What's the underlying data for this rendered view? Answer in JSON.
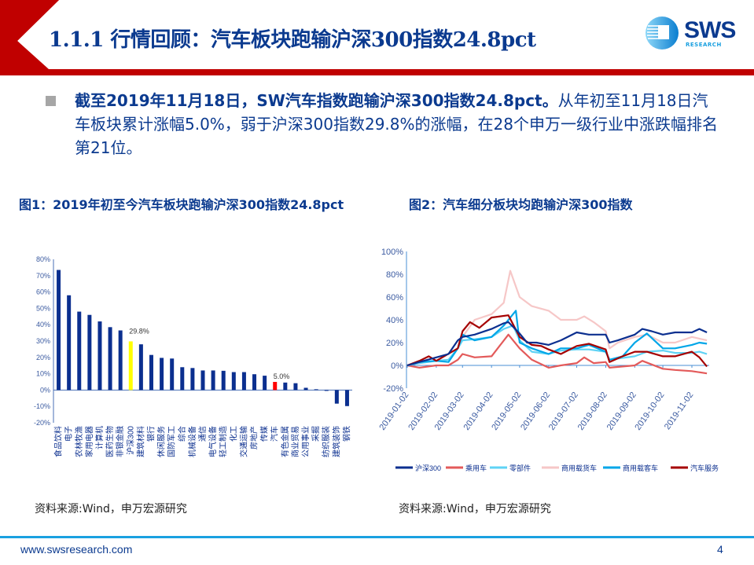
{
  "header": {
    "title": "1.1.1 行情回顾：汽车板块跑输沪深300指数24.8pct",
    "logo_text": "SWS",
    "logo_sub": "RESEARCH",
    "accent": "#c00000",
    "brand": "#0b3a8f"
  },
  "summary": {
    "bold": "截至2019年11月18日，SW汽车指数跑输沪深300指数24.8pct。",
    "rest": "从年初至11月18日汽车板块累计涨幅5.0%，弱于沪深300指数29.8%的涨幅，在28个申万一级行业中涨跌幅排名第21位。"
  },
  "figure1": {
    "title": "图1：2019年初至今汽车板块跑输沪深300指数24.8pct",
    "source": "资料来源:Wind，申万宏源研究"
  },
  "figure2": {
    "title": "图2：汽车细分板块均跑输沪深300指数",
    "source": "资料来源:Wind，申万宏源研究"
  },
  "chart_data": [
    {
      "type": "bar",
      "ylim": [
        -20,
        80
      ],
      "yticks": [
        "80%",
        "70%",
        "60%",
        "50%",
        "40%",
        "30%",
        "20%",
        "10%",
        "0%",
        "-10%",
        "-20%"
      ],
      "categories": [
        "食品饮料",
        "电子",
        "农林牧渔",
        "家用电器",
        "计算机",
        "医药生物",
        "非银金融",
        "沪深300",
        "建筑材料",
        "银行",
        "休闲服务",
        "国防军工",
        "综合",
        "机械设备",
        "通信",
        "电气设备",
        "轻工制造",
        "化工",
        "交通运输",
        "房地产",
        "传媒",
        "汽车",
        "有色金属",
        "商业贸易",
        "公用事业",
        "采掘",
        "纺织服装",
        "建筑装饰",
        "钢铁"
      ],
      "values": [
        73.5,
        58,
        48,
        46,
        42,
        38.5,
        36.5,
        29.8,
        28,
        21.5,
        19.7,
        19.3,
        14,
        13.5,
        12,
        12,
        11.8,
        11,
        11,
        9.7,
        8.8,
        5.0,
        4.6,
        4.2,
        1.4,
        0.5,
        -0.5,
        -8.3,
        -9.8
      ],
      "highlight": {
        "沪深300": "#ffff00",
        "汽车": "#ff0000"
      },
      "bar_color": "#0b2f8f",
      "data_labels": [
        {
          "category": "沪深300",
          "text": "29.8%"
        },
        {
          "category": "汽车",
          "text": "5.0%"
        }
      ]
    },
    {
      "type": "line",
      "ylim": [
        -20,
        100
      ],
      "yticks": [
        "100%",
        "80%",
        "60%",
        "40%",
        "20%",
        "0%",
        "-20%"
      ],
      "xticks": [
        "2019-01-02",
        "2019-02-02",
        "2019-03-02",
        "2019-04-02",
        "2019-05-02",
        "2019-06-02",
        "2019-07-02",
        "2019-08-02",
        "2019-09-02",
        "2019-10-02",
        "2019-11-02"
      ],
      "legend": "bottom",
      "series": [
        {
          "name": "沪深300",
          "color": "#0b2f8f",
          "x": [
            "2019-01-02",
            "2019-01-15",
            "2019-02-02",
            "2019-02-15",
            "2019-02-25",
            "2019-03-02",
            "2019-03-15",
            "2019-04-02",
            "2019-04-15",
            "2019-04-20",
            "2019-05-02",
            "2019-05-10",
            "2019-05-20",
            "2019-06-02",
            "2019-06-15",
            "2019-07-02",
            "2019-07-15",
            "2019-08-02",
            "2019-08-06",
            "2019-08-15",
            "2019-09-02",
            "2019-09-10",
            "2019-09-20",
            "2019-10-02",
            "2019-10-15",
            "2019-11-02",
            "2019-11-10",
            "2019-11-18"
          ],
          "y": [
            0,
            3,
            7,
            10,
            22,
            25,
            27,
            32,
            37,
            38,
            28,
            20,
            20,
            18,
            22,
            29,
            27,
            27,
            20,
            22,
            27,
            32,
            30,
            27,
            29,
            29,
            32,
            29
          ]
        },
        {
          "name": "乘用车",
          "color": "#e35a5a",
          "x": [
            "2019-01-02",
            "2019-01-15",
            "2019-02-02",
            "2019-02-15",
            "2019-02-25",
            "2019-03-02",
            "2019-03-15",
            "2019-04-02",
            "2019-04-20",
            "2019-05-02",
            "2019-05-15",
            "2019-06-02",
            "2019-06-15",
            "2019-07-02",
            "2019-07-10",
            "2019-07-20",
            "2019-08-02",
            "2019-08-06",
            "2019-09-02",
            "2019-09-10",
            "2019-10-02",
            "2019-10-15",
            "2019-11-02",
            "2019-11-18"
          ],
          "y": [
            0,
            -2,
            0,
            0,
            5,
            10,
            7,
            8,
            27,
            15,
            5,
            -2,
            0,
            2,
            7,
            2,
            3,
            -2,
            0,
            4,
            -3,
            -4,
            -5,
            -7
          ]
        },
        {
          "name": "零部件",
          "color": "#5fd3f5",
          "x": [
            "2019-01-02",
            "2019-01-15",
            "2019-02-02",
            "2019-02-15",
            "2019-02-25",
            "2019-03-02",
            "2019-03-15",
            "2019-04-02",
            "2019-04-15",
            "2019-04-25",
            "2019-05-02",
            "2019-05-15",
            "2019-06-02",
            "2019-06-15",
            "2019-07-02",
            "2019-07-15",
            "2019-08-02",
            "2019-08-06",
            "2019-08-15",
            "2019-09-02",
            "2019-09-15",
            "2019-10-02",
            "2019-10-15",
            "2019-11-02",
            "2019-11-10",
            "2019-11-18"
          ],
          "y": [
            0,
            2,
            4,
            5,
            15,
            22,
            23,
            25,
            32,
            35,
            22,
            12,
            10,
            13,
            14,
            14,
            12,
            5,
            6,
            8,
            12,
            13,
            11,
            11,
            12,
            10
          ]
        },
        {
          "name": "商用载货车",
          "color": "#f6c7c7",
          "x": [
            "2019-01-02",
            "2019-01-15",
            "2019-02-02",
            "2019-02-15",
            "2019-02-25",
            "2019-03-02",
            "2019-03-15",
            "2019-04-02",
            "2019-04-15",
            "2019-04-22",
            "2019-05-02",
            "2019-05-15",
            "2019-06-02",
            "2019-06-15",
            "2019-07-02",
            "2019-07-10",
            "2019-07-20",
            "2019-08-02",
            "2019-08-06",
            "2019-08-15",
            "2019-09-02",
            "2019-09-15",
            "2019-10-02",
            "2019-10-15",
            "2019-11-02",
            "2019-11-18"
          ],
          "y": [
            0,
            2,
            4,
            5,
            15,
            25,
            40,
            45,
            55,
            83,
            60,
            52,
            48,
            40,
            40,
            43,
            38,
            30,
            15,
            20,
            25,
            27,
            20,
            20,
            25,
            22
          ]
        },
        {
          "name": "商用载客车",
          "color": "#00a6e8",
          "x": [
            "2019-01-02",
            "2019-01-15",
            "2019-02-02",
            "2019-02-15",
            "2019-02-25",
            "2019-03-02",
            "2019-03-15",
            "2019-04-02",
            "2019-04-15",
            "2019-04-28",
            "2019-05-02",
            "2019-05-15",
            "2019-06-02",
            "2019-06-15",
            "2019-07-02",
            "2019-07-15",
            "2019-08-02",
            "2019-08-06",
            "2019-08-20",
            "2019-09-02",
            "2019-09-15",
            "2019-10-02",
            "2019-10-15",
            "2019-11-02",
            "2019-11-10",
            "2019-11-18"
          ],
          "y": [
            0,
            3,
            4,
            3,
            15,
            27,
            22,
            25,
            35,
            48,
            20,
            15,
            10,
            15,
            15,
            18,
            12,
            5,
            8,
            20,
            28,
            15,
            15,
            18,
            20,
            19
          ]
        },
        {
          "name": "汽车服务",
          "color": "#a50000",
          "x": [
            "2019-01-02",
            "2019-01-15",
            "2019-01-25",
            "2019-02-02",
            "2019-02-25",
            "2019-03-02",
            "2019-03-10",
            "2019-03-20",
            "2019-04-02",
            "2019-04-20",
            "2019-05-02",
            "2019-05-15",
            "2019-05-25",
            "2019-06-02",
            "2019-06-15",
            "2019-07-02",
            "2019-07-15",
            "2019-08-02",
            "2019-08-06",
            "2019-08-20",
            "2019-09-02",
            "2019-09-15",
            "2019-10-02",
            "2019-10-15",
            "2019-11-02",
            "2019-11-10",
            "2019-11-18"
          ],
          "y": [
            0,
            4,
            8,
            4,
            15,
            30,
            38,
            33,
            42,
            44,
            25,
            18,
            17,
            14,
            10,
            17,
            19,
            14,
            3,
            8,
            12,
            12,
            8,
            8,
            12,
            7,
            -1
          ]
        }
      ]
    }
  ],
  "footer": {
    "url": "www.swsresearch.com",
    "page": "4"
  }
}
